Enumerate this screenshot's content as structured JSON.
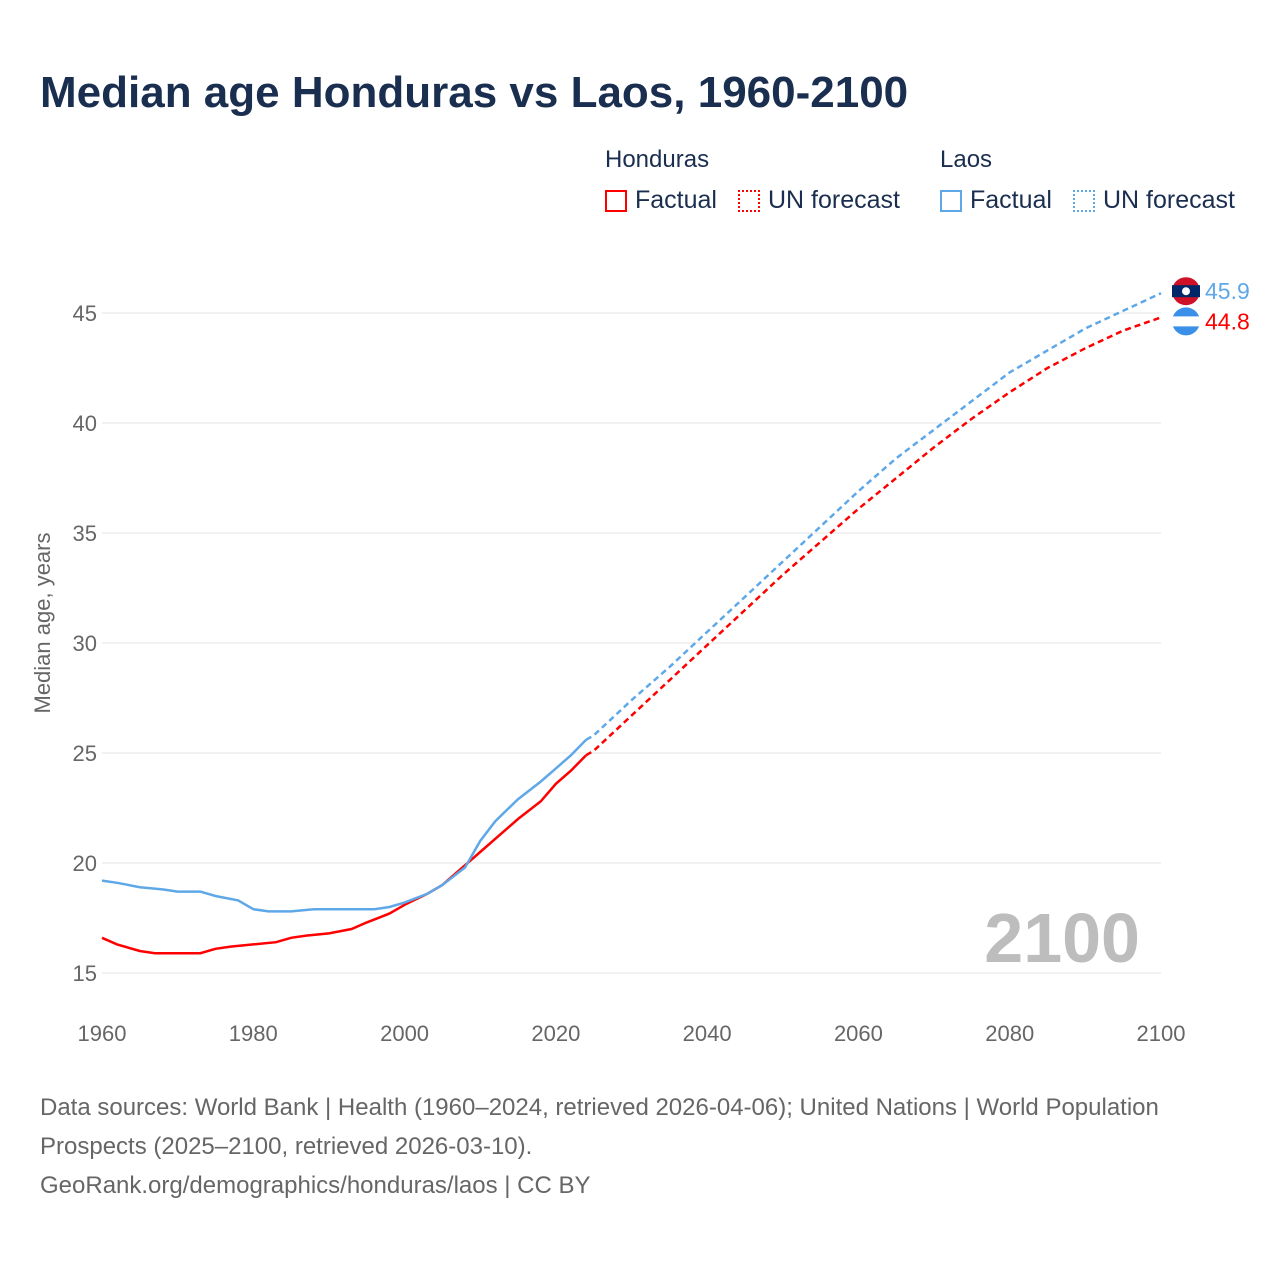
{
  "title": "Median age Honduras vs Laos, 1960-2100",
  "legend": {
    "honduras": "Honduras",
    "laos": "Laos",
    "factual": "Factual",
    "forecast": "UN forecast"
  },
  "colors": {
    "honduras": "#ff0000",
    "laos": "#5fa8e8"
  },
  "source": {
    "line1": "Data sources: World Bank | Health (1960–2024, retrieved 2026-04-06); United Nations | World Population Prospects (2025–2100, retrieved 2026-03-10).",
    "line2": "GeoRank.org/demographics/honduras/laos | CC BY"
  },
  "chart_data": {
    "type": "line",
    "title": "Median age Honduras vs Laos, 1960-2100",
    "ylabel": "Median age, years",
    "xlim": [
      1960,
      2100
    ],
    "ylim": [
      15,
      47
    ],
    "xticks": [
      "1960",
      "1980",
      "2000",
      "2020",
      "2040",
      "2060",
      "2080",
      "2100"
    ],
    "yticks": [
      "15",
      "20",
      "25",
      "30",
      "35",
      "40",
      "45"
    ],
    "year_label": "2100",
    "series": [
      {
        "name": "Honduras",
        "key": "honduras",
        "end_label": "44.8",
        "factual": {
          "x": [
            1960,
            1962,
            1965,
            1967,
            1970,
            1973,
            1975,
            1977,
            1980,
            1983,
            1985,
            1987,
            1990,
            1993,
            1995,
            1998,
            2000,
            2003,
            2005,
            2008,
            2010,
            2013,
            2015,
            2018,
            2020,
            2022,
            2024
          ],
          "y": [
            16.6,
            16.3,
            16.0,
            15.9,
            15.9,
            15.9,
            16.1,
            16.2,
            16.3,
            16.4,
            16.6,
            16.7,
            16.8,
            17.0,
            17.3,
            17.7,
            18.1,
            18.6,
            19.0,
            19.9,
            20.5,
            21.4,
            22.0,
            22.8,
            23.6,
            24.2,
            24.9
          ]
        },
        "forecast": {
          "x": [
            2024,
            2025,
            2030,
            2035,
            2040,
            2045,
            2050,
            2055,
            2060,
            2065,
            2070,
            2075,
            2080,
            2085,
            2090,
            2095,
            2100
          ],
          "y": [
            24.9,
            25.1,
            26.7,
            28.3,
            29.9,
            31.5,
            33.1,
            34.6,
            36.1,
            37.5,
            38.9,
            40.2,
            41.4,
            42.5,
            43.4,
            44.2,
            44.8
          ]
        }
      },
      {
        "name": "Laos",
        "key": "laos",
        "end_label": "45.9",
        "factual": {
          "x": [
            1960,
            1962,
            1965,
            1968,
            1970,
            1973,
            1975,
            1978,
            1980,
            1982,
            1985,
            1988,
            1990,
            1993,
            1996,
            1998,
            2000,
            2003,
            2005,
            2008,
            2010,
            2012,
            2015,
            2018,
            2020,
            2022,
            2024
          ],
          "y": [
            19.2,
            19.1,
            18.9,
            18.8,
            18.7,
            18.7,
            18.5,
            18.3,
            17.9,
            17.8,
            17.8,
            17.9,
            17.9,
            17.9,
            17.9,
            18.0,
            18.2,
            18.6,
            19.0,
            19.8,
            21.0,
            21.9,
            22.9,
            23.7,
            24.3,
            24.9,
            25.6
          ]
        },
        "forecast": {
          "x": [
            2024,
            2025,
            2030,
            2035,
            2040,
            2045,
            2050,
            2055,
            2060,
            2065,
            2070,
            2075,
            2080,
            2085,
            2090,
            2095,
            2100
          ],
          "y": [
            25.6,
            25.8,
            27.4,
            28.9,
            30.5,
            32.1,
            33.7,
            35.3,
            36.9,
            38.4,
            39.7,
            41.0,
            42.3,
            43.3,
            44.3,
            45.1,
            45.9
          ]
        }
      }
    ]
  }
}
